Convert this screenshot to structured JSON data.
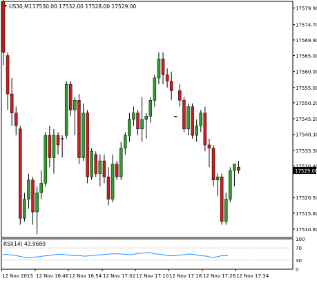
{
  "header": {
    "arrow_icon": "triangle-down-icon",
    "symbol": "US30,M1",
    "ohlc": "17530.00 17532.00 17528.00 17529.00"
  },
  "colors": {
    "background": "#ffffff",
    "bull": "#2e9e2e",
    "bear": "#c81e1e",
    "wick": "#000000",
    "rsi_line": "#1e90ff",
    "current_price_label_bg": "#000000",
    "current_price_label_fg": "#ffffff",
    "grid": "none"
  },
  "chart_data": [
    {
      "type": "candlestick",
      "title": "US30,M1",
      "grid": false,
      "ylim": [
        17508,
        17582
      ],
      "y_tick_labels": [
        "17579.90",
        "17574.70",
        "17569.90",
        "17565.00",
        "17560.00",
        "17555.00",
        "17550.20",
        "17545.20",
        "17540.30",
        "17535.30",
        "17530.40",
        "17520.50",
        "17515.60",
        "17510.60"
      ],
      "current_price_label": "17529.00",
      "candles": [
        {
          "o": 17582.0,
          "h": 17583.0,
          "l": 17562.0,
          "c": 17566.0
        },
        {
          "o": 17565.0,
          "h": 17566.0,
          "l": 17548.0,
          "c": 17553.0
        },
        {
          "o": 17553.0,
          "h": 17558.0,
          "l": 17543.0,
          "c": 17547.0
        },
        {
          "o": 17547.0,
          "h": 17549.0,
          "l": 17540.0,
          "c": 17543.0
        },
        {
          "o": 17542.0,
          "h": 17543.0,
          "l": 17512.0,
          "c": 17514.0
        },
        {
          "o": 17514.0,
          "h": 17522.0,
          "l": 17513.0,
          "c": 17520.0
        },
        {
          "o": 17520.0,
          "h": 17528.0,
          "l": 17517.0,
          "c": 17526.0
        },
        {
          "o": 17526.0,
          "h": 17527.0,
          "l": 17512.0,
          "c": 17516.0
        },
        {
          "o": 17516.0,
          "h": 17524.0,
          "l": 17509.0,
          "c": 17522.0
        },
        {
          "o": 17522.0,
          "h": 17529.0,
          "l": 17520.0,
          "c": 17525.0
        },
        {
          "o": 17525.0,
          "h": 17541.0,
          "l": 17524.0,
          "c": 17540.0
        },
        {
          "o": 17540.0,
          "h": 17543.0,
          "l": 17530.0,
          "c": 17533.0
        },
        {
          "o": 17533.0,
          "h": 17542.0,
          "l": 17528.0,
          "c": 17540.0
        },
        {
          "o": 17540.0,
          "h": 17541.0,
          "l": 17534.0,
          "c": 17537.0
        },
        {
          "o": 17539.0,
          "h": 17540.0,
          "l": 17533.0,
          "c": 17539.0
        },
        {
          "o": 17540.0,
          "h": 17557.0,
          "l": 17539.0,
          "c": 17556.0
        },
        {
          "o": 17556.0,
          "h": 17557.0,
          "l": 17546.0,
          "c": 17548.0
        },
        {
          "o": 17548.0,
          "h": 17552.0,
          "l": 17540.0,
          "c": 17551.0
        },
        {
          "o": 17551.0,
          "h": 17553.0,
          "l": 17531.0,
          "c": 17533.0
        },
        {
          "o": 17533.0,
          "h": 17550.0,
          "l": 17532.0,
          "c": 17547.0
        },
        {
          "o": 17547.0,
          "h": 17548.0,
          "l": 17525.0,
          "c": 17527.0
        },
        {
          "o": 17527.0,
          "h": 17536.0,
          "l": 17526.0,
          "c": 17535.0
        },
        {
          "o": 17534.0,
          "h": 17535.0,
          "l": 17527.0,
          "c": 17528.0
        },
        {
          "o": 17528.0,
          "h": 17534.0,
          "l": 17524.0,
          "c": 17532.0
        },
        {
          "o": 17532.0,
          "h": 17534.0,
          "l": 17525.0,
          "c": 17527.0
        },
        {
          "o": 17527.0,
          "h": 17530.0,
          "l": 17518.0,
          "c": 17520.0
        },
        {
          "o": 17520.0,
          "h": 17534.0,
          "l": 17519.0,
          "c": 17531.0
        },
        {
          "o": 17531.0,
          "h": 17532.0,
          "l": 17526.0,
          "c": 17527.0
        },
        {
          "o": 17527.0,
          "h": 17538.0,
          "l": 17526.0,
          "c": 17536.0
        },
        {
          "o": 17536.0,
          "h": 17541.0,
          "l": 17534.0,
          "c": 17540.0
        },
        {
          "o": 17540.0,
          "h": 17547.0,
          "l": 17538.0,
          "c": 17545.0
        },
        {
          "o": 17545.0,
          "h": 17549.0,
          "l": 17543.0,
          "c": 17547.0
        },
        {
          "o": 17547.0,
          "h": 17548.0,
          "l": 17540.0,
          "c": 17542.0
        },
        {
          "o": 17542.0,
          "h": 17552.0,
          "l": 17538.0,
          "c": 17545.0
        },
        {
          "o": 17545.0,
          "h": 17547.0,
          "l": 17539.0,
          "c": 17546.0
        },
        {
          "o": 17546.0,
          "h": 17552.0,
          "l": 17544.0,
          "c": 17551.0
        },
        {
          "o": 17551.0,
          "h": 17559.0,
          "l": 17549.0,
          "c": 17558.0
        },
        {
          "o": 17558.0,
          "h": 17566.0,
          "l": 17556.0,
          "c": 17564.0
        },
        {
          "o": 17564.0,
          "h": 17566.0,
          "l": 17556.0,
          "c": 17559.0
        },
        {
          "o": 17559.0,
          "h": 17561.0,
          "l": 17555.0,
          "c": 17557.0
        },
        {
          "o": 17557.0,
          "h": 17560.0,
          "l": 17551.0,
          "c": 17554.0
        },
        {
          "o": 17546.0,
          "h": 17546.0,
          "l": 17546.0,
          "c": 17546.0
        },
        {
          "o": 17554.0,
          "h": 17556.0,
          "l": 17549.0,
          "c": 17551.0
        },
        {
          "o": 17551.0,
          "h": 17552.0,
          "l": 17541.0,
          "c": 17542.0
        },
        {
          "o": 17542.0,
          "h": 17550.0,
          "l": 17540.0,
          "c": 17549.0
        },
        {
          "o": 17549.0,
          "h": 17550.0,
          "l": 17539.0,
          "c": 17540.0
        },
        {
          "o": 17540.0,
          "h": 17545.0,
          "l": 17538.0,
          "c": 17543.0
        },
        {
          "o": 17543.0,
          "h": 17548.0,
          "l": 17541.0,
          "c": 17547.0
        },
        {
          "o": 17547.0,
          "h": 17549.0,
          "l": 17535.0,
          "c": 17537.0
        },
        {
          "o": 17537.0,
          "h": 17539.0,
          "l": 17530.0,
          "c": 17536.0
        },
        {
          "o": 17536.0,
          "h": 17537.0,
          "l": 17524.0,
          "c": 17526.0
        },
        {
          "o": 17526.0,
          "h": 17528.0,
          "l": 17521.0,
          "c": 17527.0
        },
        {
          "o": 17527.0,
          "h": 17528.0,
          "l": 17512.0,
          "c": 17513.0
        },
        {
          "o": 17513.0,
          "h": 17522.0,
          "l": 17512.0,
          "c": 17520.0
        },
        {
          "o": 17520.0,
          "h": 17530.0,
          "l": 17519.0,
          "c": 17529.0
        },
        {
          "o": 17529.0,
          "h": 17531.0,
          "l": 17524.0,
          "c": 17531.0
        },
        {
          "o": 17530.0,
          "h": 17532.0,
          "l": 17528.0,
          "c": 17529.0
        }
      ]
    },
    {
      "type": "line",
      "title": "RSI(14) 43.9680",
      "ylim": [
        0,
        100
      ],
      "levels": [
        70,
        30
      ],
      "y_tick_labels": [
        "100",
        "70",
        "30",
        "0"
      ],
      "series": [
        {
          "values": [
            47,
            49,
            47,
            46,
            44,
            42,
            39,
            37,
            38,
            40,
            41,
            43,
            44,
            45,
            47,
            48,
            49,
            48,
            47,
            46,
            45,
            45,
            44,
            43,
            44,
            45,
            46,
            47,
            48,
            49,
            50,
            51,
            51,
            50,
            49,
            48,
            48,
            50,
            52,
            53,
            54,
            55,
            52,
            50,
            49,
            47,
            45,
            44,
            45,
            46,
            47,
            48,
            50,
            49,
            47,
            45,
            44,
            43,
            40,
            39,
            41,
            44,
            45,
            44
          ]
        }
      ]
    }
  ],
  "x_axis": {
    "tick_labels": [
      "12 Nov 2015",
      "12 Nov 16:46",
      "12 Nov 16:54",
      "12 Nov 17:02",
      "12 Nov 17:10",
      "12 Nov 17:18",
      "12 Nov 17:26",
      "12 Nov 17:34"
    ]
  }
}
